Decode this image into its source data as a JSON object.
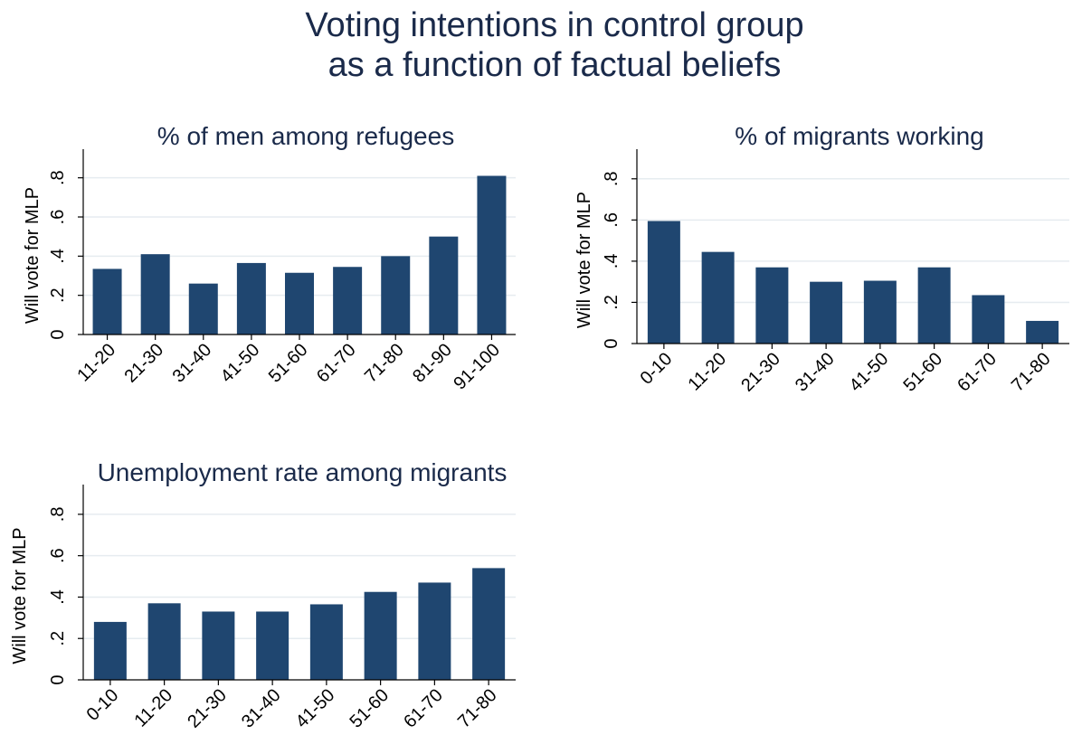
{
  "title_lines": [
    "Voting intentions in control group",
    "as a function of factual beliefs"
  ],
  "colors": {
    "bar": "#1f4670",
    "title": "#1a2a4a",
    "grid": "#e6ecf0"
  },
  "chart_data": [
    {
      "type": "bar",
      "title": "% of men among refugees",
      "ylabel": "Will vote for MLP",
      "ylim": [
        0,
        0.9
      ],
      "yticks": [
        0,
        0.2,
        0.4,
        0.6,
        0.8
      ],
      "ytick_labels": [
        "0",
        ".2",
        ".4",
        ".6",
        ".8"
      ],
      "grid": true,
      "categories": [
        "11-20",
        "21-30",
        "31-40",
        "41-50",
        "51-60",
        "61-70",
        "71-80",
        "81-90",
        "91-100"
      ],
      "values": [
        0.335,
        0.41,
        0.26,
        0.365,
        0.315,
        0.345,
        0.4,
        0.5,
        0.81
      ]
    },
    {
      "type": "bar",
      "title": "% of migrants working",
      "ylabel": "Will vote for MLP",
      "ylim": [
        0,
        0.9
      ],
      "yticks": [
        0,
        0.2,
        0.4,
        0.6,
        0.8
      ],
      "ytick_labels": [
        "0",
        ".2",
        ".4",
        ".6",
        ".8"
      ],
      "grid": true,
      "categories": [
        "0-10",
        "11-20",
        "21-30",
        "31-40",
        "41-50",
        "51-60",
        "61-70",
        "71-80"
      ],
      "values": [
        0.595,
        0.445,
        0.37,
        0.3,
        0.305,
        0.37,
        0.235,
        0.11
      ]
    },
    {
      "type": "bar",
      "title": "Unemployment rate among migrants",
      "ylabel": "Will vote for MLP",
      "ylim": [
        0,
        0.9
      ],
      "yticks": [
        0,
        0.2,
        0.4,
        0.6,
        0.8
      ],
      "ytick_labels": [
        "0",
        ".2",
        ".4",
        ".6",
        ".8"
      ],
      "grid": true,
      "categories": [
        "0-10",
        "11-20",
        "21-30",
        "31-40",
        "41-50",
        "51-60",
        "61-70",
        "71-80"
      ],
      "values": [
        0.28,
        0.37,
        0.33,
        0.33,
        0.365,
        0.425,
        0.47,
        0.54
      ]
    }
  ]
}
